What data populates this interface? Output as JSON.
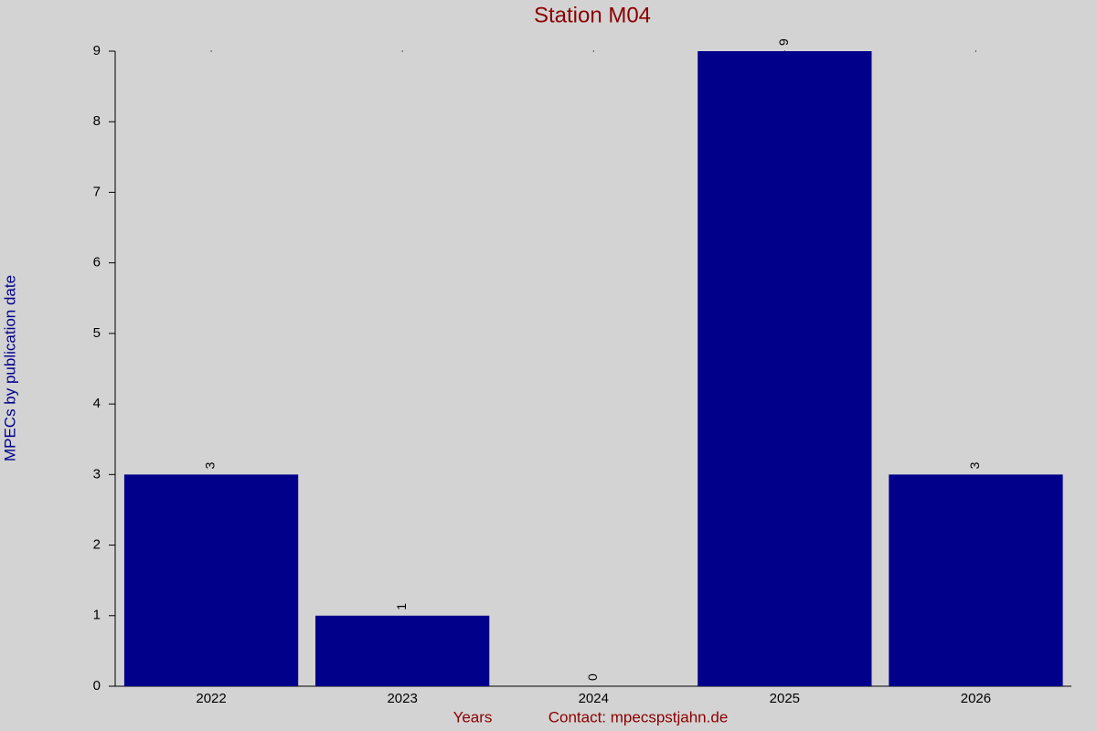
{
  "chart_data": {
    "type": "bar",
    "title": "Station M04",
    "y_label": "MPECs by publication date",
    "x_label": "Years",
    "annotation": "Contact: mpecspstjahn.de",
    "categories": [
      "2022",
      "2023",
      "2024",
      "2025",
      "2026"
    ],
    "values": [
      3,
      1,
      0,
      9,
      3
    ],
    "color": "#00008b",
    "ylim": [
      0,
      9
    ],
    "yticks": [
      0,
      1,
      2,
      3,
      4,
      5,
      6,
      7,
      8,
      9
    ],
    "grid": false
  }
}
